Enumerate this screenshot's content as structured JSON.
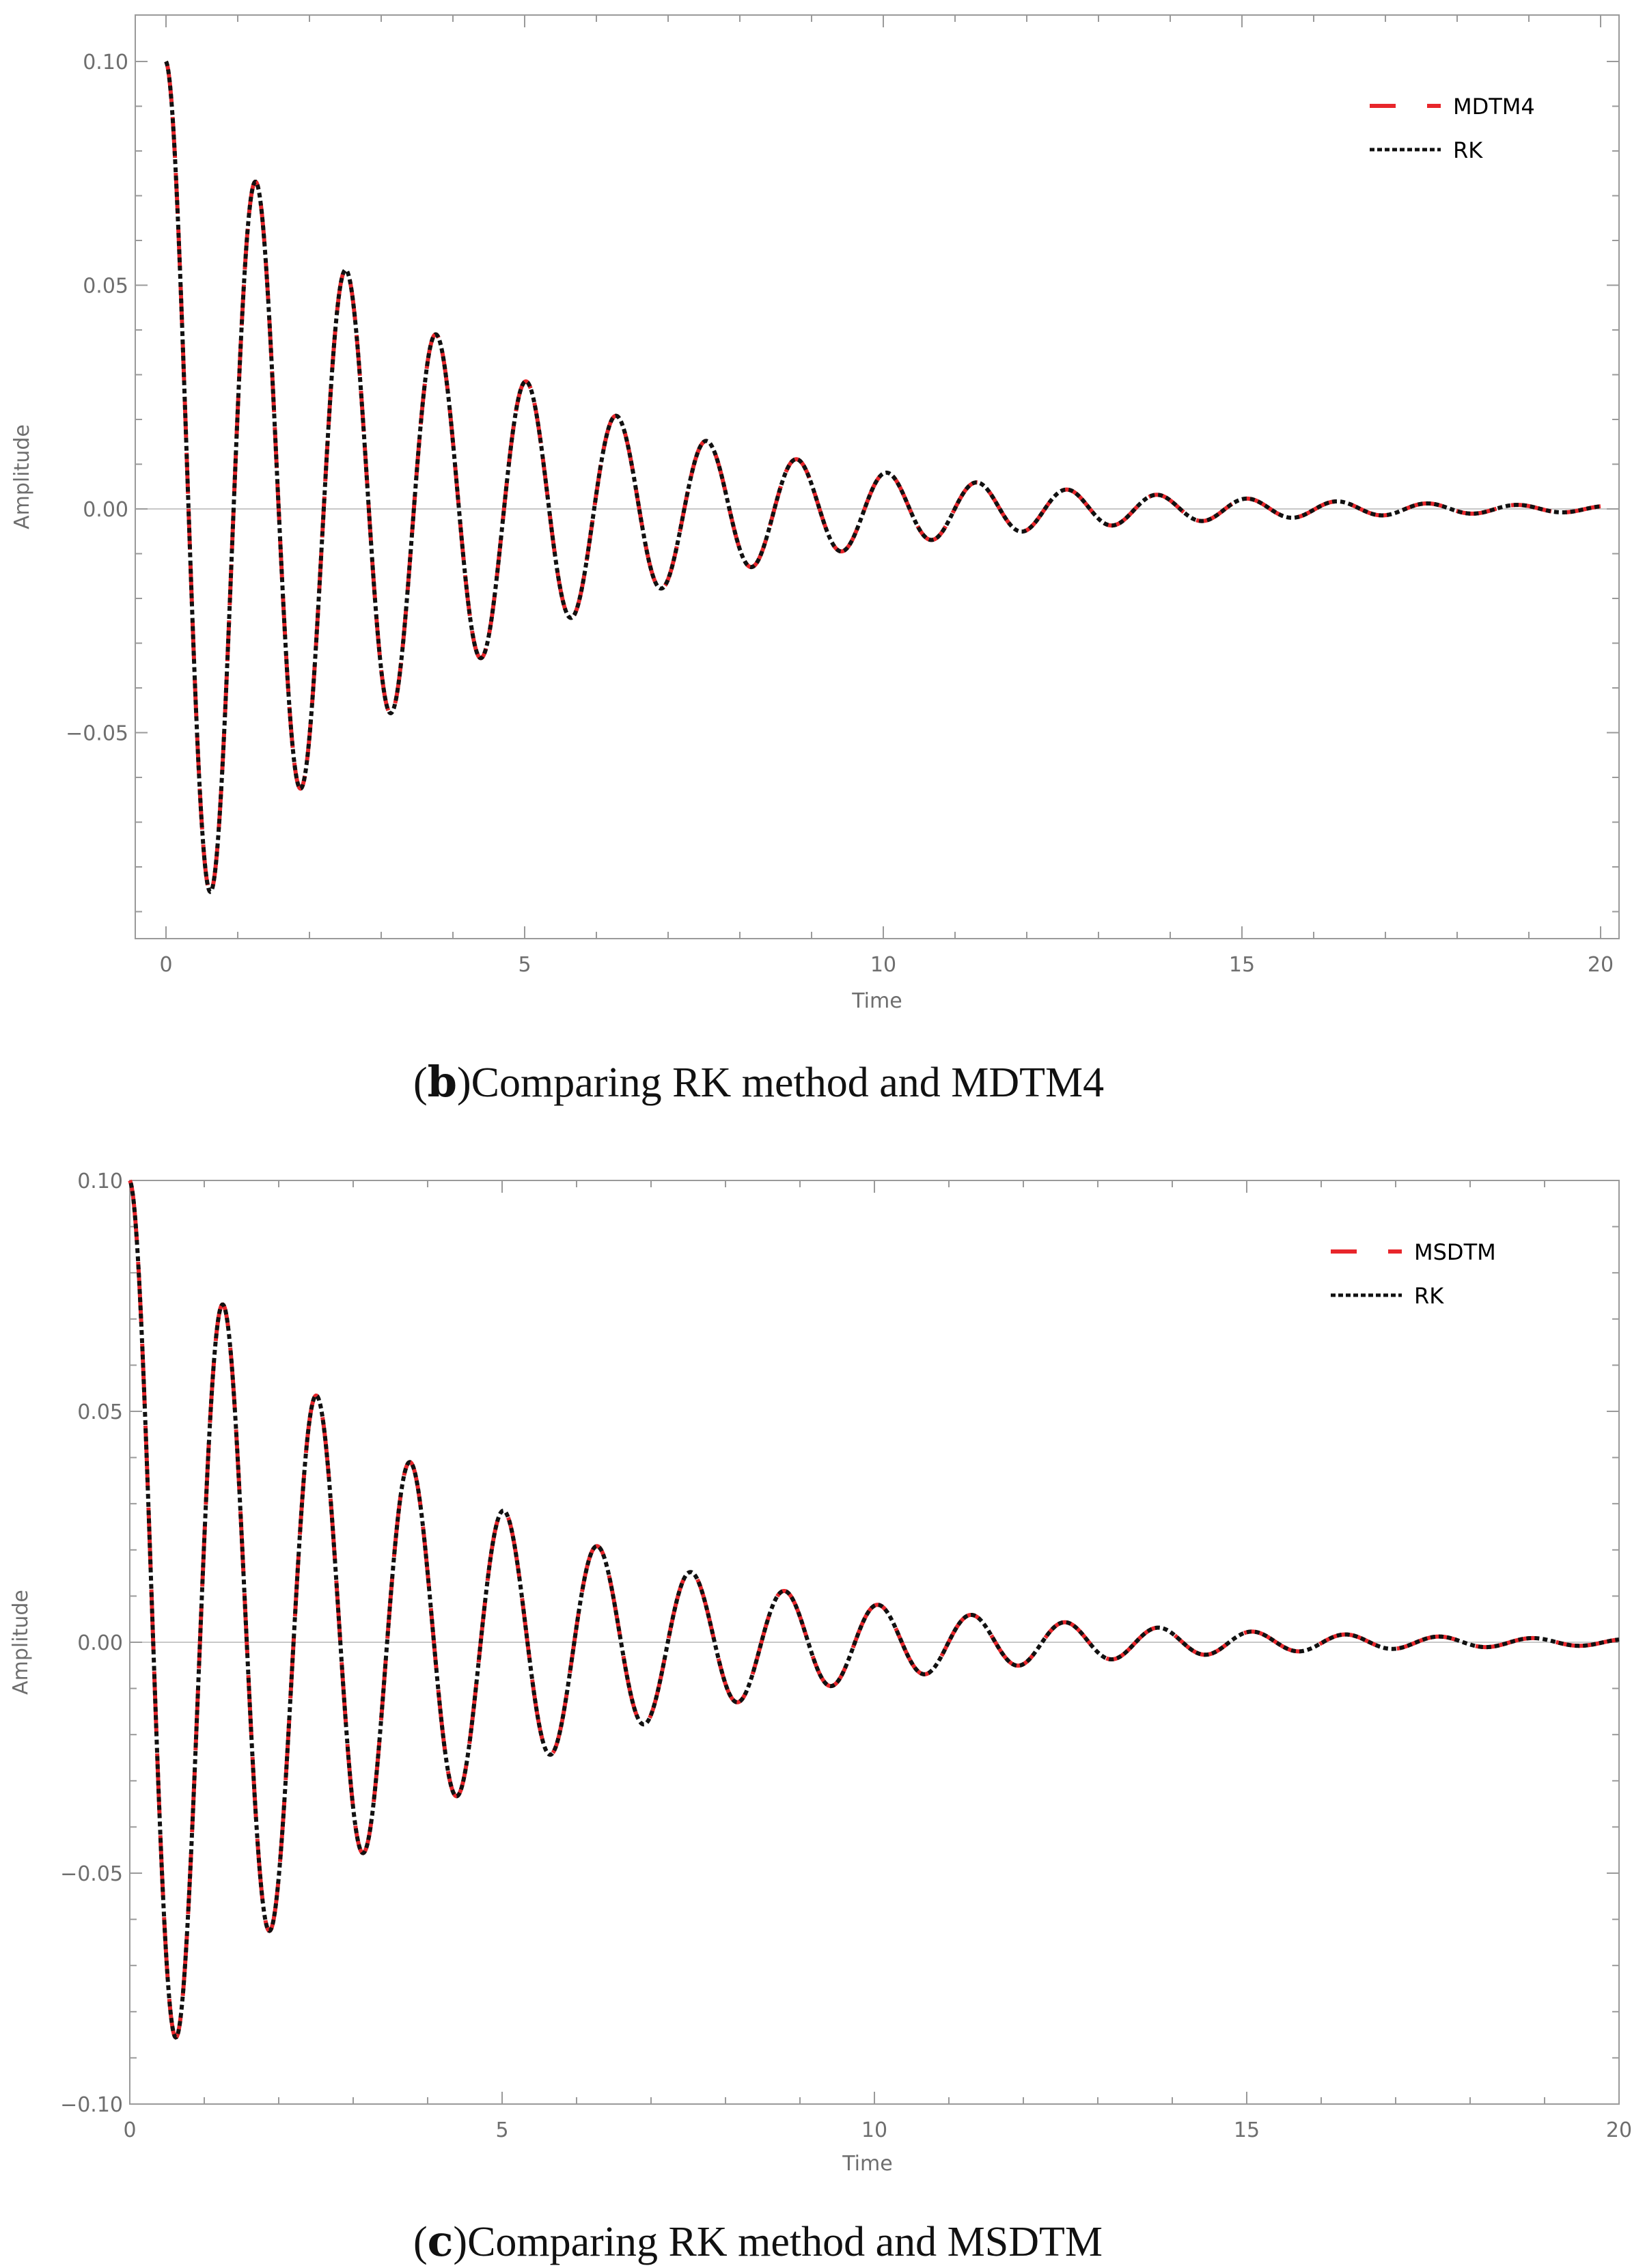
{
  "colors": {
    "red": "#e8262b",
    "black": "#111111",
    "frame": "#9a9a9a",
    "zero": "#c8c8c8"
  },
  "chart_data": [
    {
      "type": "line",
      "panel": "b",
      "caption_letter": "b",
      "caption_text": "Comparing RK method and MDTM4",
      "xlabel": "Time",
      "ylabel": "Amplitude",
      "xlim": [
        -0.5,
        20.4
      ],
      "ylim": [
        -0.095,
        0.108
      ],
      "xticks": [
        0,
        5,
        10,
        15,
        20
      ],
      "xtick_labels": [
        "0",
        "5",
        "10",
        "15",
        "20"
      ],
      "yticks": [
        -0.05,
        0.0,
        0.05,
        0.1
      ],
      "ytick_labels": [
        "−0.05",
        "0.00",
        "0.05",
        "0.10"
      ],
      "legend_position": "top-right",
      "series": [
        {
          "name": "MDTM4",
          "style": "red-dashed",
          "model": {
            "amplitude": 0.1,
            "decay": 0.25,
            "omega": 5.0,
            "t_start": 0,
            "t_end": 20
          }
        },
        {
          "name": "RK",
          "style": "black-dotted",
          "model": {
            "amplitude": 0.1,
            "decay": 0.25,
            "omega": 5.0,
            "t_start": 0,
            "t_end": 20
          }
        }
      ],
      "extrema": {
        "t": [
          0,
          0.63,
          1.26,
          1.88,
          2.51,
          3.14,
          3.77,
          4.4,
          5.03,
          5.65,
          6.28,
          6.91,
          7.54,
          8.17,
          8.8,
          9.42,
          10.05
        ],
        "y": [
          0.1,
          -0.086,
          0.073,
          -0.063,
          0.053,
          -0.046,
          0.039,
          -0.033,
          0.028,
          -0.024,
          0.021,
          -0.018,
          0.015,
          -0.013,
          0.011,
          -0.01,
          0.008
        ]
      }
    },
    {
      "type": "line",
      "panel": "c",
      "caption_letter": "c",
      "caption_text": "Comparing RK method and MSDTM",
      "xlabel": "Time",
      "ylabel": "Amplitude",
      "xlim": [
        0,
        20
      ],
      "ylim": [
        -0.1,
        0.1
      ],
      "xticks": [
        0,
        5,
        10,
        15,
        20
      ],
      "xtick_labels": [
        "0",
        "5",
        "10",
        "15",
        "20"
      ],
      "yticks": [
        -0.1,
        -0.05,
        0.0,
        0.05,
        0.1
      ],
      "ytick_labels": [
        "−0.10",
        "−0.05",
        "0.00",
        "0.05",
        "0.10"
      ],
      "legend_position": "top-right",
      "series": [
        {
          "name": "MSDTM",
          "style": "red-dashed",
          "model": {
            "amplitude": 0.1,
            "decay": 0.25,
            "omega": 5.0,
            "t_start": 0,
            "t_end": 20
          }
        },
        {
          "name": "RK",
          "style": "black-dotted",
          "model": {
            "amplitude": 0.1,
            "decay": 0.25,
            "omega": 5.0,
            "t_start": 0,
            "t_end": 20
          }
        }
      ],
      "extrema": {
        "t": [
          0,
          0.63,
          1.26,
          1.88,
          2.51,
          3.14,
          3.77,
          4.4,
          5.03,
          5.65,
          6.28,
          6.91,
          7.54,
          8.17,
          8.8,
          9.42,
          10.05
        ],
        "y": [
          0.1,
          -0.086,
          0.073,
          -0.063,
          0.053,
          -0.046,
          0.039,
          -0.033,
          0.028,
          -0.024,
          0.021,
          -0.018,
          0.015,
          -0.013,
          0.011,
          -0.01,
          0.008
        ]
      }
    }
  ]
}
